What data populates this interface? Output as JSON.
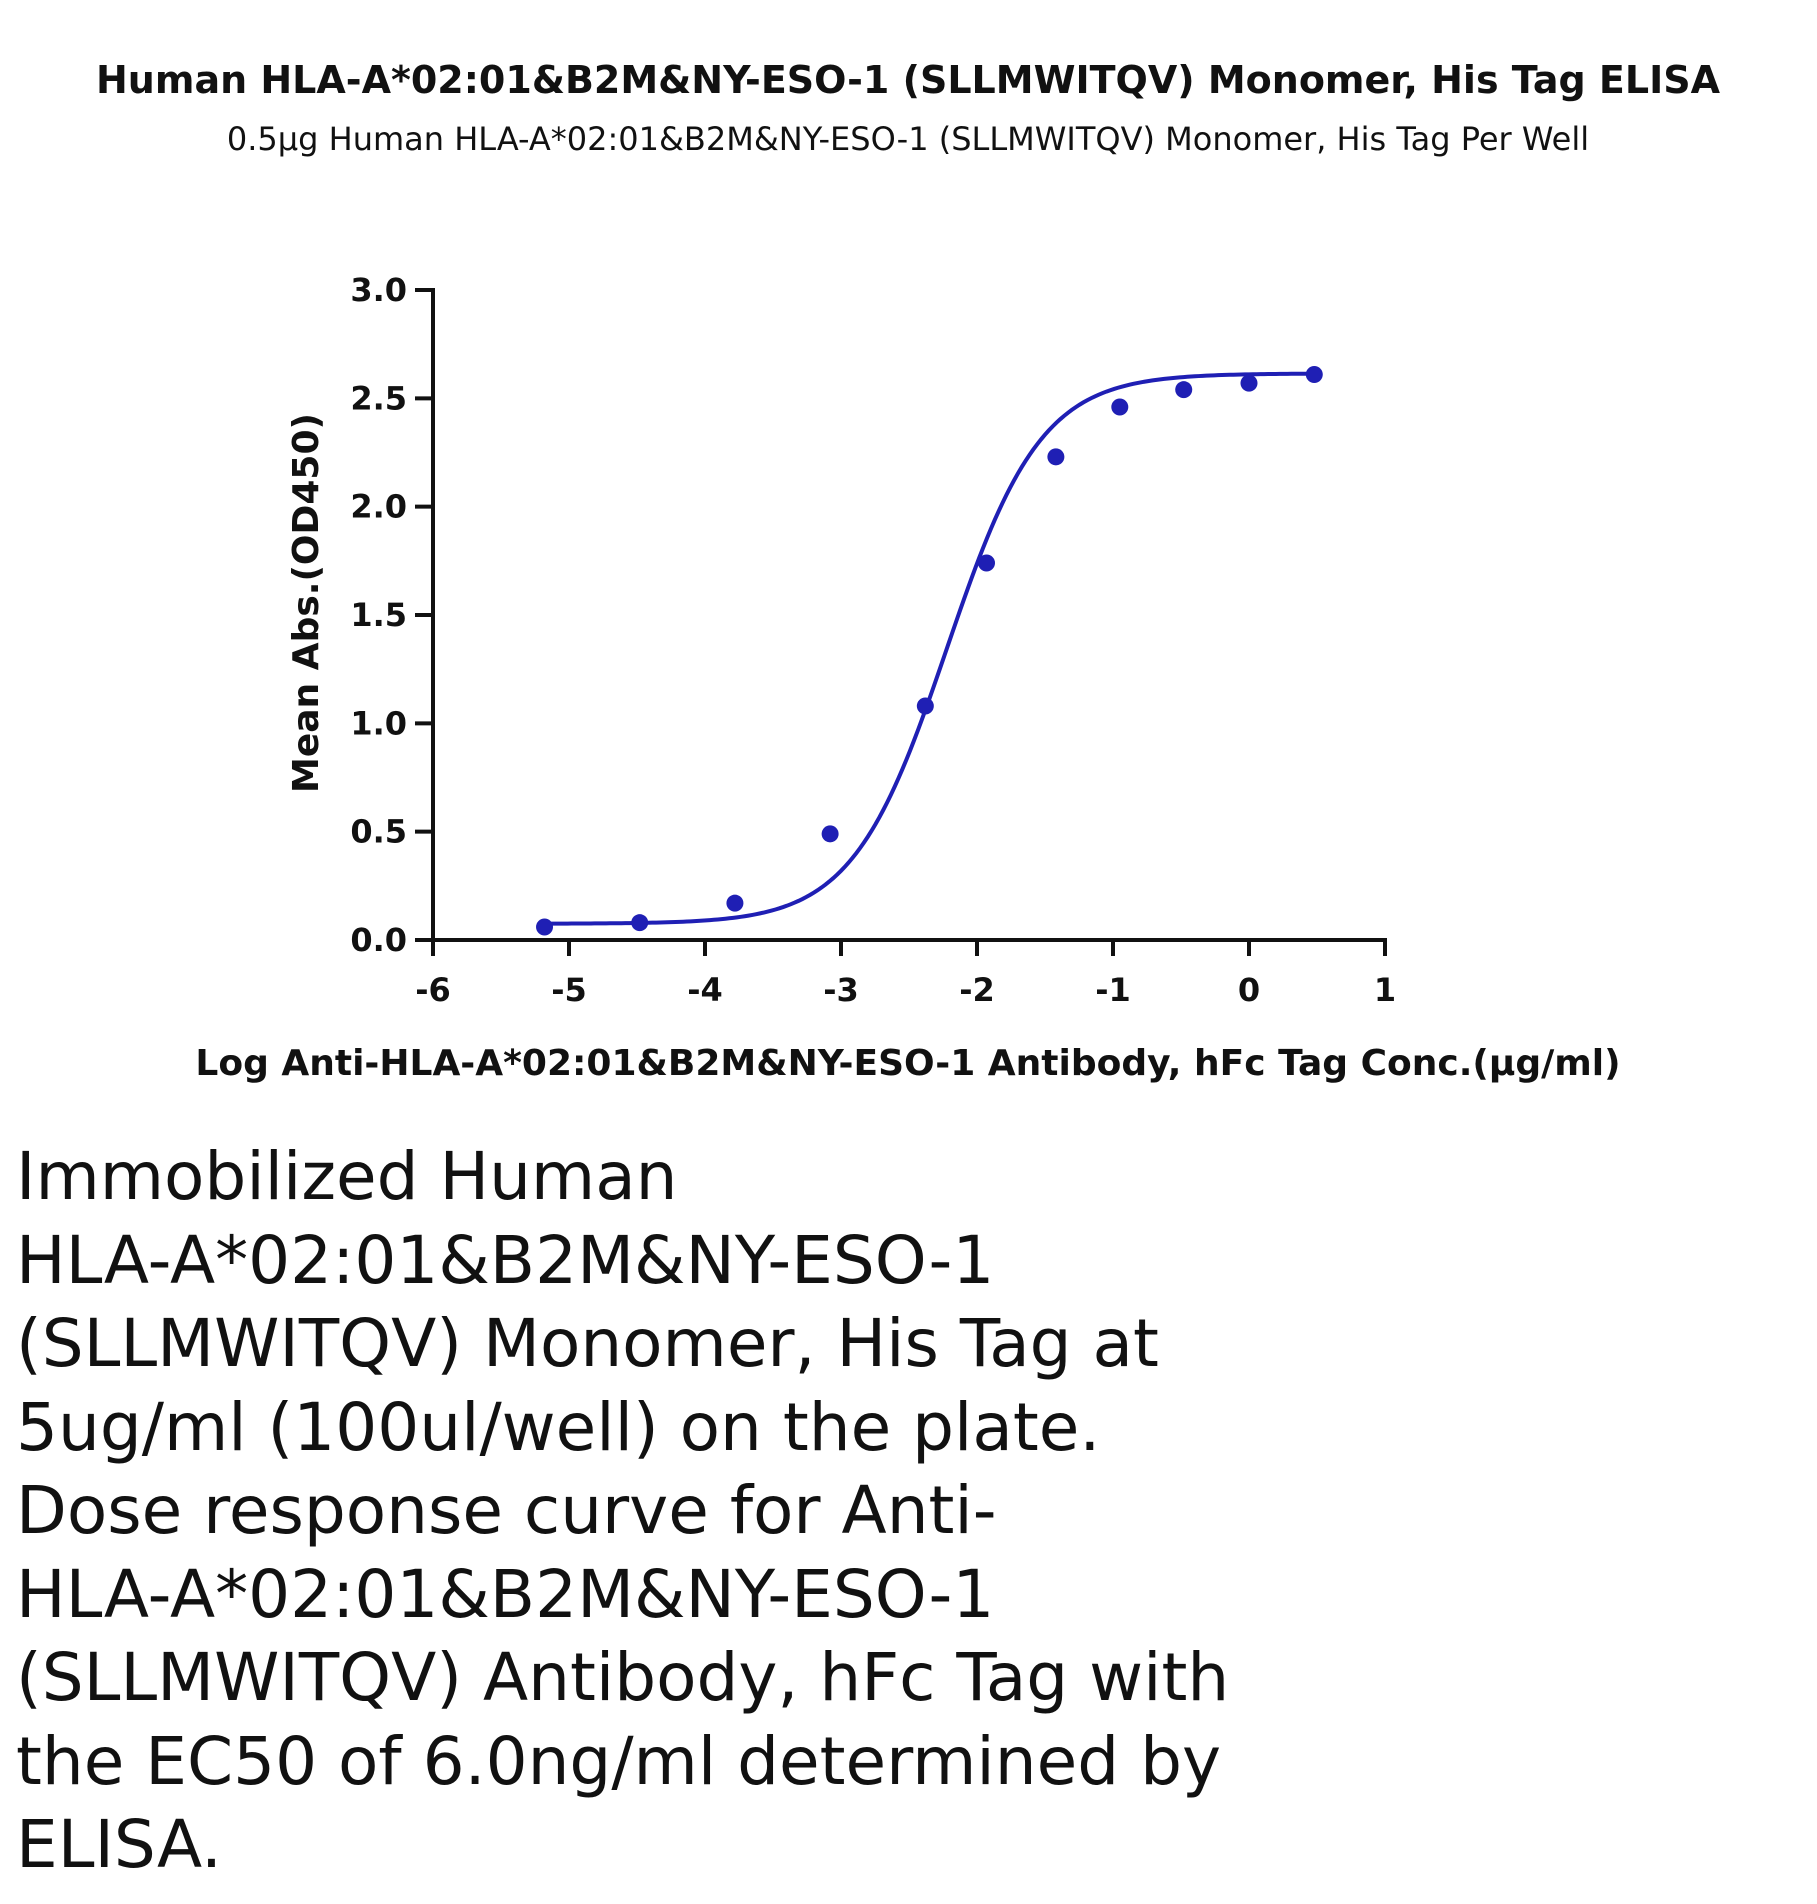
{
  "chart_data": {
    "type": "scatter",
    "title": "Human HLA-A*02:01&B2M&NY-ESO-1 (SLLMWITQV) Monomer, His Tag ELISA",
    "subtitle": "0.5μg Human HLA-A*02:01&B2M&NY-ESO-1 (SLLMWITQV) Monomer, His Tag Per Well",
    "xlabel": "Log Anti-HLA-A*02:01&B2M&NY-ESO-1 Antibody, hFc Tag Conc.(μg/ml)",
    "ylabel": "Mean Abs.(OD450)",
    "xlim": [
      -6,
      1
    ],
    "ylim": [
      0,
      3
    ],
    "x_ticks": [
      "-6",
      "-5",
      "-4",
      "-3",
      "-2",
      "-1",
      "0",
      "1"
    ],
    "y_ticks": [
      "0.0",
      "0.5",
      "1.0",
      "1.5",
      "2.0",
      "2.5",
      "3.0"
    ],
    "series": [
      {
        "x": [
          -5.18,
          -4.48,
          -3.78,
          -3.08,
          -2.38,
          -1.93,
          -1.42,
          -0.95,
          -0.48,
          0.0,
          0.48
        ],
        "y": [
          0.06,
          0.08,
          0.17,
          0.49,
          1.08,
          1.74,
          2.23,
          2.46,
          2.54,
          2.57,
          2.61
        ],
        "color": "#1f1fb4",
        "fit": "4PL",
        "fit_params": {
          "bottom": 0.075,
          "top": 2.615,
          "logEC50": -2.2218,
          "hill": 1.25
        }
      }
    ],
    "grid": false,
    "legend": "none"
  },
  "caption": "Immobilized Human\nHLA-A*02:01&B2M&NY-ESO-1\n(SLLMWITQV) Monomer, His Tag at\n5ug/ml (100ul/well) on the plate.\nDose response curve for Anti-\nHLA-A*02:01&B2M&NY-ESO-1\n(SLLMWITQV) Antibody, hFc Tag with\nthe EC50 of 6.0ng/ml determined by\nELISA."
}
